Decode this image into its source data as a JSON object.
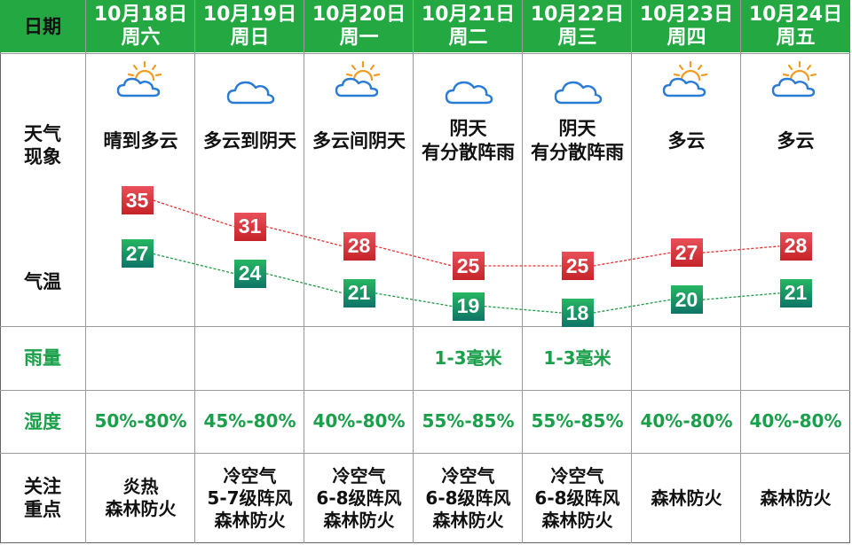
{
  "header": {
    "label": "日期"
  },
  "rows": {
    "weather": "天气\n现象",
    "temp": "气温",
    "rain": "雨量",
    "humidity": "湿度",
    "focus": "关注\n重点"
  },
  "days": [
    {
      "date": "10月18日",
      "weekday": "周六",
      "icon": "sun-cloud-icon",
      "weather": "晴到多云",
      "high": 35,
      "low": 27,
      "rain": "",
      "humidity": "50%-80%",
      "focus": "炎热\n森林防火"
    },
    {
      "date": "10月19日",
      "weekday": "周日",
      "icon": "cloud-icon",
      "weather": "多云到阴天",
      "high": 31,
      "low": 24,
      "rain": "",
      "humidity": "45%-80%",
      "focus": "冷空气\n5-7级阵风\n森林防火"
    },
    {
      "date": "10月20日",
      "weekday": "周一",
      "icon": "sun-cloud-icon",
      "weather": "多云间阴天",
      "high": 28,
      "low": 21,
      "rain": "",
      "humidity": "40%-80%",
      "focus": "冷空气\n6-8级阵风\n森林防火"
    },
    {
      "date": "10月21日",
      "weekday": "周二",
      "icon": "cloud-icon",
      "weather": "阴天\n有分散阵雨",
      "high": 25,
      "low": 19,
      "rain": "1-3毫米",
      "humidity": "55%-85%",
      "focus": "冷空气\n6-8级阵风\n森林防火"
    },
    {
      "date": "10月22日",
      "weekday": "周三",
      "icon": "cloud-icon",
      "weather": "阴天\n有分散阵雨",
      "high": 25,
      "low": 18,
      "rain": "1-3毫米",
      "humidity": "55%-85%",
      "focus": "冷空气\n6-8级阵风\n森林防火"
    },
    {
      "date": "10月23日",
      "weekday": "周四",
      "icon": "sun-cloud-icon",
      "weather": "多云",
      "high": 27,
      "low": 20,
      "rain": "",
      "humidity": "40%-80%",
      "focus": "森林防火"
    },
    {
      "date": "10月24日",
      "weekday": "周五",
      "icon": "sun-cloud-icon",
      "weather": "多云",
      "high": 28,
      "low": 21,
      "rain": "",
      "humidity": "40%-80%",
      "focus": "森林防火"
    }
  ],
  "colors": {
    "header_green": "#24a942",
    "label_green": "#1aa04a",
    "high_badge": "#d0323a",
    "low_badge": "#139060",
    "high_line": "#e63030",
    "low_line": "#1f9a45",
    "sun": "#f39c1f",
    "cloud": "#2a7bd6"
  }
}
